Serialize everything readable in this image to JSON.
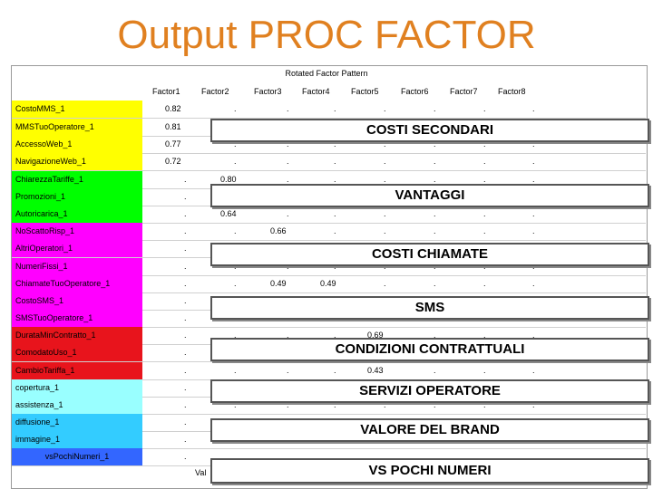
{
  "title": "Output PROC FACTOR",
  "table_title": "Rotated Factor Pattern",
  "columns": [
    "Factor1",
    "Factor2",
    "Factor3",
    "Factor4",
    "Factor5",
    "Factor6",
    "Factor7",
    "Factor8"
  ],
  "rows": [
    {
      "label": "CostoMMS_1",
      "color": "#ffff00",
      "values": {
        "0": "0.82"
      }
    },
    {
      "label": "MMSTuoOperatore_1",
      "color": "#ffff00",
      "values": {
        "0": "0.81"
      }
    },
    {
      "label": "AccessoWeb_1",
      "color": "#ffff00",
      "values": {
        "0": "0.77"
      }
    },
    {
      "label": "NavigazioneWeb_1",
      "color": "#ffff00",
      "values": {
        "0": "0.72"
      }
    },
    {
      "label": "ChiarezzaTariffe_1",
      "color": "#00ff00",
      "values": {
        "1": "0.80"
      }
    },
    {
      "label": "Promozioni_1",
      "color": "#00ff00",
      "values": {}
    },
    {
      "label": "Autoricarica_1",
      "color": "#00ff00",
      "values": {
        "1": "0.64"
      }
    },
    {
      "label": "NoScattoRisp_1",
      "color": "#ff00ff",
      "values": {
        "2": "0.66"
      }
    },
    {
      "label": "AltriOperatori_1",
      "color": "#ff00ff",
      "values": {}
    },
    {
      "label": "NumeriFissi_1",
      "color": "#ff00ff",
      "values": {}
    },
    {
      "label": "ChiamateTuoOperatore_1",
      "color": "#ff00ff",
      "values": {
        "2": "0.49",
        "3": "0.49"
      }
    },
    {
      "label": "CostoSMS_1",
      "color": "#ff00ff",
      "values": {}
    },
    {
      "label": "SMSTuoOperatore_1",
      "color": "#ff00ff",
      "values": {}
    },
    {
      "label": "DurataMinContratto_1",
      "color": "#e8141c",
      "values": {
        "4": "0.69"
      }
    },
    {
      "label": "ComodatoUso_1",
      "color": "#e8141c",
      "values": {}
    },
    {
      "label": "CambioTariffa_1",
      "color": "#e8141c",
      "values": {
        "4": "0.43"
      }
    },
    {
      "label": "copertura_1",
      "color": "#99ffff",
      "values": {}
    },
    {
      "label": "assistenza_1",
      "color": "#99ffff",
      "values": {}
    },
    {
      "label": "diffusione_1",
      "color": "#33ccff",
      "values": {}
    },
    {
      "label": "immagine_1",
      "color": "#33ccff",
      "values": {}
    },
    {
      "label": "vsPochiNumeri_1",
      "color": "#3366ff",
      "values": {},
      "center": true
    }
  ],
  "banners": [
    "COSTI SECONDARI",
    "VANTAGGI",
    "COSTI CHIAMATE",
    "SMS",
    "CONDIZIONI CONTRATTUALI",
    "SERVIZI OPERATORE",
    "VALORE DEL BRAND",
    "VS POCHI NUMERI"
  ],
  "footer_text": "Val"
}
